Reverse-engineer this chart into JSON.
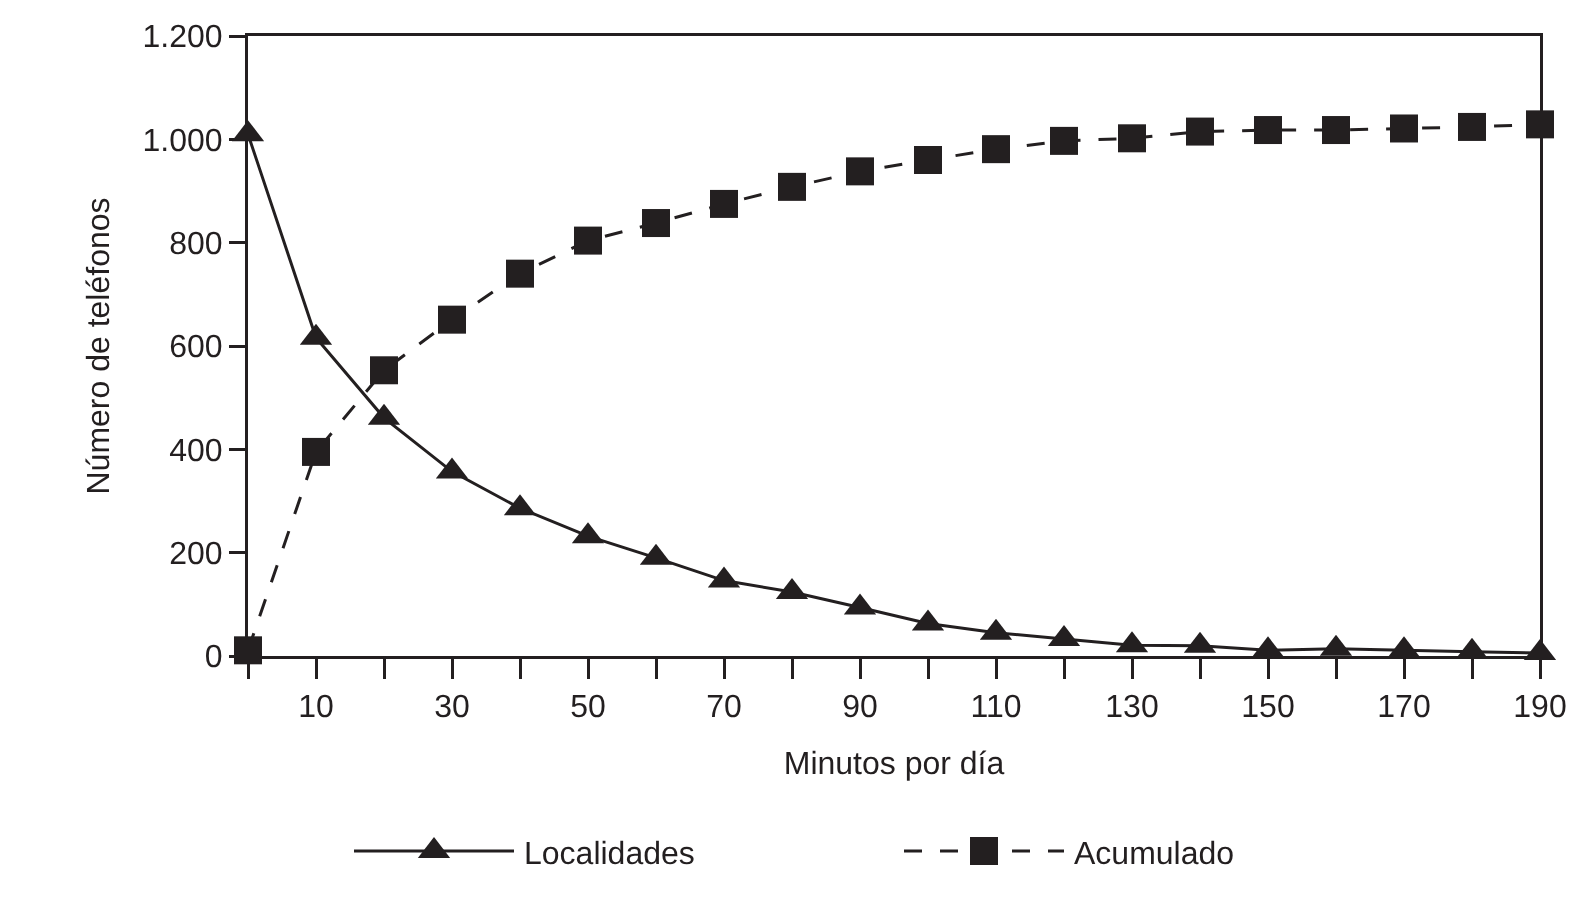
{
  "chart_data": {
    "type": "line",
    "xlabel": "Minutos por día",
    "ylabel": "Número de teléfonos",
    "x": [
      0,
      10,
      20,
      30,
      40,
      50,
      60,
      70,
      80,
      90,
      100,
      110,
      120,
      130,
      140,
      150,
      160,
      170,
      180,
      190
    ],
    "series": [
      {
        "name": "Localidades",
        "color": "#231f20",
        "marker": "triangle",
        "line_style": "solid",
        "values": [
          1010,
          616,
          461,
          357,
          286,
          232,
          190,
          146,
          124,
          94,
          63,
          45,
          33,
          21,
          20,
          11,
          14,
          11,
          8,
          6
        ]
      },
      {
        "name": "Acumulado",
        "color": "#231f20",
        "marker": "square",
        "line_style": "dashed",
        "values": [
          11,
          395,
          553,
          651,
          740,
          804,
          838,
          875,
          908,
          938,
          960,
          981,
          997,
          1002,
          1015,
          1018,
          1018,
          1021,
          1024,
          1029
        ]
      }
    ],
    "xlim": [
      0,
      190
    ],
    "xticks": [
      {
        "value": 0,
        "label": null
      },
      10,
      {
        "value": 20,
        "label": null
      },
      30,
      {
        "value": 40,
        "label": null
      },
      50,
      {
        "value": 60,
        "label": null
      },
      70,
      {
        "value": 80,
        "label": null
      },
      90,
      {
        "value": 100,
        "label": null
      },
      110,
      {
        "value": 120,
        "label": null
      },
      130,
      {
        "value": 140,
        "label": null
      },
      150,
      {
        "value": 160,
        "label": null
      },
      170,
      {
        "value": 180,
        "label": null
      },
      190
    ],
    "ylim": [
      0,
      1200
    ],
    "yticks": [
      0,
      200,
      400,
      600,
      800,
      {
        "value": 1000,
        "label": "1.000"
      },
      {
        "value": 1200,
        "label": "1.200"
      }
    ],
    "grid": false,
    "legend": "bottom"
  }
}
